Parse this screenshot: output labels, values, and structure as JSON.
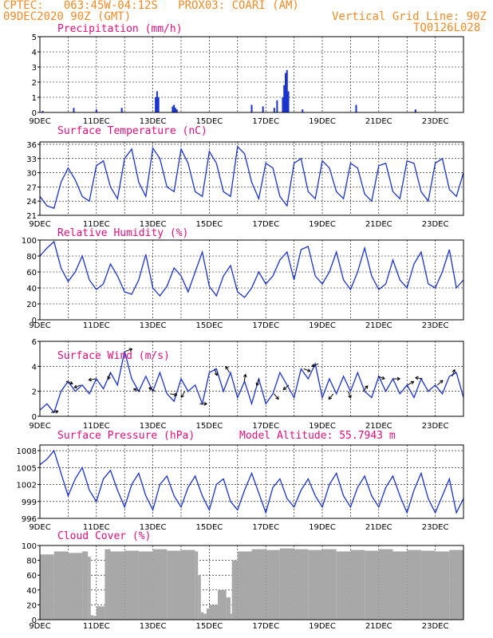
{
  "header": {
    "line1": "CPTEC:   063:45W-04:12S   PROX03: COARI (AM)",
    "line2": "09DEC2020 90Z (GMT)",
    "grid_note": "Vertical Grid Line: 90Z",
    "code": "TQ0126L028"
  },
  "colors": {
    "header": "#f08c28",
    "title": "#e0107a",
    "series": "#1a33cc",
    "cloud": "#a8a8a8",
    "frame": "#000000",
    "grid": "#000000"
  },
  "x_tick_labels": [
    "9DEC",
    "11DEC",
    "13DEC",
    "15DEC",
    "17DEC",
    "19DEC",
    "21DEC",
    "23DEC"
  ],
  "chart_data": [
    {
      "type": "bar",
      "title": "Precipitation (mm/h)",
      "ylim": [
        0,
        5
      ],
      "yticks": [
        0,
        1,
        2,
        3,
        4,
        5
      ],
      "x_range_days": [
        9,
        24
      ],
      "x": [
        9.1,
        10.2,
        11.0,
        11.9,
        13.1,
        13.15,
        13.2,
        13.7,
        13.75,
        13.8,
        13.85,
        16.5,
        16.9,
        17.3,
        17.4,
        17.6,
        17.65,
        17.7,
        17.75,
        17.8,
        18.3,
        20.2,
        22.3
      ],
      "values": [
        0.1,
        0.3,
        0.2,
        0.3,
        1.0,
        1.4,
        1.0,
        0.4,
        0.5,
        0.3,
        0.2,
        0.5,
        0.4,
        0.3,
        0.8,
        1.0,
        1.8,
        2.6,
        2.8,
        1.4,
        0.2,
        0.5,
        0.2
      ]
    },
    {
      "type": "line",
      "title": "Surface Temperature (nC)",
      "ylim": [
        21,
        36.5
      ],
      "yticks": [
        21,
        24,
        27,
        30,
        33,
        36
      ],
      "x_range_days": [
        9,
        24
      ],
      "x": [
        9.0,
        9.25,
        9.5,
        9.75,
        10.0,
        10.25,
        10.5,
        10.75,
        11.0,
        11.25,
        11.5,
        11.75,
        12.0,
        12.25,
        12.5,
        12.75,
        13.0,
        13.25,
        13.5,
        13.75,
        14.0,
        14.25,
        14.5,
        14.75,
        15.0,
        15.25,
        15.5,
        15.75,
        16.0,
        16.25,
        16.5,
        16.75,
        17.0,
        17.25,
        17.5,
        17.75,
        18.0,
        18.25,
        18.5,
        18.75,
        19.0,
        19.25,
        19.5,
        19.75,
        20.0,
        20.25,
        20.5,
        20.75,
        21.0,
        21.25,
        21.5,
        21.75,
        22.0,
        22.25,
        22.5,
        22.75,
        23.0,
        23.25,
        23.5,
        23.75,
        24.0
      ],
      "values": [
        25,
        23,
        22.5,
        28,
        31,
        28.5,
        25,
        24,
        31.5,
        32.5,
        27,
        24.5,
        33,
        35,
        28,
        25,
        35.2,
        33,
        27,
        26,
        35,
        32,
        26,
        25,
        34.5,
        32,
        26,
        25,
        35.5,
        34,
        28,
        24.5,
        32,
        31,
        25,
        23,
        32,
        33,
        26,
        24.5,
        32.5,
        31,
        26,
        24.5,
        32,
        31,
        25.5,
        24,
        31.5,
        32,
        26,
        24.5,
        32.5,
        32,
        26,
        24,
        32,
        33,
        26.5,
        25,
        30
      ]
    },
    {
      "type": "line",
      "title": "Relative Humidity (%)",
      "ylim": [
        0,
        100
      ],
      "yticks": [
        0,
        20,
        40,
        60,
        80,
        100
      ],
      "x_range_days": [
        9,
        24
      ],
      "x": [
        9.0,
        9.25,
        9.5,
        9.75,
        10.0,
        10.25,
        10.5,
        10.75,
        11.0,
        11.25,
        11.5,
        11.75,
        12.0,
        12.25,
        12.5,
        12.75,
        13.0,
        13.25,
        13.5,
        13.75,
        14.0,
        14.25,
        14.5,
        14.75,
        15.0,
        15.25,
        15.5,
        15.75,
        16.0,
        16.25,
        16.5,
        16.75,
        17.0,
        17.25,
        17.5,
        17.75,
        18.0,
        18.25,
        18.5,
        18.75,
        19.0,
        19.25,
        19.5,
        19.75,
        20.0,
        20.25,
        20.5,
        20.75,
        21.0,
        21.25,
        21.5,
        21.75,
        22.0,
        22.25,
        22.5,
        22.75,
        23.0,
        23.25,
        23.5,
        23.75,
        24.0
      ],
      "values": [
        80,
        90,
        98,
        65,
        48,
        60,
        80,
        50,
        38,
        45,
        70,
        55,
        35,
        32,
        50,
        82,
        40,
        30,
        42,
        65,
        55,
        35,
        60,
        85,
        42,
        30,
        55,
        68,
        35,
        28,
        40,
        60,
        45,
        55,
        75,
        85,
        50,
        88,
        92,
        55,
        45,
        60,
        85,
        50,
        38,
        60,
        90,
        55,
        38,
        45,
        75,
        50,
        40,
        70,
        85,
        45,
        40,
        60,
        88,
        40,
        50
      ]
    },
    {
      "type": "line",
      "title": "Surface Wind (m/s)",
      "ylim": [
        0,
        6
      ],
      "yticks": [
        0,
        2,
        4,
        6
      ],
      "x_range_days": [
        9,
        24
      ],
      "x": [
        9.0,
        9.25,
        9.5,
        9.75,
        10.0,
        10.25,
        10.5,
        10.75,
        11.0,
        11.25,
        11.5,
        11.75,
        12.0,
        12.25,
        12.5,
        12.75,
        13.0,
        13.25,
        13.5,
        13.75,
        14.0,
        14.25,
        14.5,
        14.75,
        15.0,
        15.25,
        15.5,
        15.75,
        16.0,
        16.25,
        16.5,
        16.75,
        17.0,
        17.25,
        17.5,
        17.75,
        18.0,
        18.25,
        18.5,
        18.75,
        19.0,
        19.25,
        19.5,
        19.75,
        20.0,
        20.25,
        20.5,
        20.75,
        21.0,
        21.25,
        21.5,
        21.75,
        22.0,
        22.25,
        22.5,
        22.75,
        23.0,
        23.25,
        23.5,
        23.75,
        24.0
      ],
      "values": [
        0.5,
        1.0,
        0.3,
        2.0,
        2.8,
        2.0,
        2.5,
        1.8,
        3.0,
        2.2,
        3.5,
        2.5,
        5.2,
        3.0,
        2.0,
        3.2,
        2.0,
        3.5,
        1.8,
        1.2,
        3.0,
        2.0,
        2.5,
        1.0,
        3.5,
        3.8,
        2.0,
        3.5,
        1.5,
        2.8,
        1.0,
        3.0,
        1.0,
        1.8,
        3.5,
        2.5,
        1.5,
        3.8,
        3.0,
        4.2,
        1.5,
        3.0,
        1.8,
        3.2,
        2.0,
        3.5,
        2.0,
        1.5,
        3.2,
        2.0,
        3.0,
        1.8,
        2.5,
        1.5,
        3.0,
        2.0,
        2.5,
        1.8,
        3.2,
        3.5,
        1.5
      ],
      "wind_vectors_deg": [
        80,
        110,
        250,
        260,
        200,
        70,
        290,
        300,
        100,
        210,
        90,
        160,
        330,
        10,
        200,
        140,
        230,
        110,
        250,
        220,
        160,
        40,
        110,
        90,
        60,
        280,
        50,
        20
      ]
    },
    {
      "type": "line",
      "title": "Surface Pressure (hPa)",
      "annotation": "Model Altitude: 55.7943 m",
      "ylim": [
        996,
        1009
      ],
      "yticks": [
        996,
        999,
        1002,
        1005,
        1008
      ],
      "x_range_days": [
        9,
        24
      ],
      "x": [
        9.0,
        9.25,
        9.5,
        9.75,
        10.0,
        10.25,
        10.5,
        10.75,
        11.0,
        11.25,
        11.5,
        11.75,
        12.0,
        12.25,
        12.5,
        12.75,
        13.0,
        13.25,
        13.5,
        13.75,
        14.0,
        14.25,
        14.5,
        14.75,
        15.0,
        15.25,
        15.5,
        15.75,
        16.0,
        16.25,
        16.5,
        16.75,
        17.0,
        17.25,
        17.5,
        17.75,
        18.0,
        18.25,
        18.5,
        18.75,
        19.0,
        19.25,
        19.5,
        19.75,
        20.0,
        20.25,
        20.5,
        20.75,
        21.0,
        21.25,
        21.5,
        21.75,
        22.0,
        22.25,
        22.5,
        22.75,
        23.0,
        23.25,
        23.5,
        23.75,
        24.0
      ],
      "values": [
        1005.5,
        1006.5,
        1008,
        1004,
        1000,
        1003,
        1005,
        1001,
        999,
        1003,
        1004.5,
        1001,
        998,
        1002,
        1004,
        1000,
        997.5,
        1002,
        1003.5,
        1000,
        998,
        1001.5,
        1003.5,
        1000,
        997.5,
        1002,
        1003,
        999,
        997.5,
        1001,
        1004,
        1000.5,
        997,
        1001.5,
        1003,
        999.5,
        998,
        1001,
        1003,
        1000,
        998,
        1002,
        1004,
        1000,
        998,
        1001.5,
        1003.5,
        1000,
        998,
        1001.5,
        1003.5,
        1000,
        997,
        1001,
        1004,
        999.5,
        997,
        1000,
        1003,
        997,
        999.5
      ]
    },
    {
      "type": "area",
      "title": "Cloud Cover (%)",
      "ylim": [
        0,
        100
      ],
      "yticks": [
        0,
        20,
        40,
        60,
        80,
        100
      ],
      "x_range_days": [
        9,
        24
      ],
      "x": [
        9.0,
        9.5,
        10.0,
        10.5,
        10.7,
        10.8,
        10.9,
        11.0,
        11.3,
        11.5,
        12.0,
        12.5,
        13.0,
        13.5,
        14.0,
        14.5,
        14.6,
        14.7,
        14.8,
        14.9,
        15.0,
        15.3,
        15.6,
        15.75,
        15.8,
        16.0,
        16.5,
        17.0,
        17.5,
        18.0,
        18.5,
        19.0,
        19.5,
        20.0,
        20.5,
        21.0,
        21.5,
        22.0,
        22.5,
        23.0,
        23.5,
        24.0
      ],
      "values": [
        88,
        92,
        90,
        92,
        85,
        6,
        5,
        18,
        95,
        92,
        93,
        92,
        95,
        93,
        94,
        92,
        60,
        10,
        8,
        15,
        20,
        40,
        30,
        8,
        80,
        92,
        95,
        94,
        96,
        95,
        94,
        95,
        92,
        94,
        93,
        95,
        92,
        94,
        93,
        92,
        94,
        95
      ]
    }
  ]
}
